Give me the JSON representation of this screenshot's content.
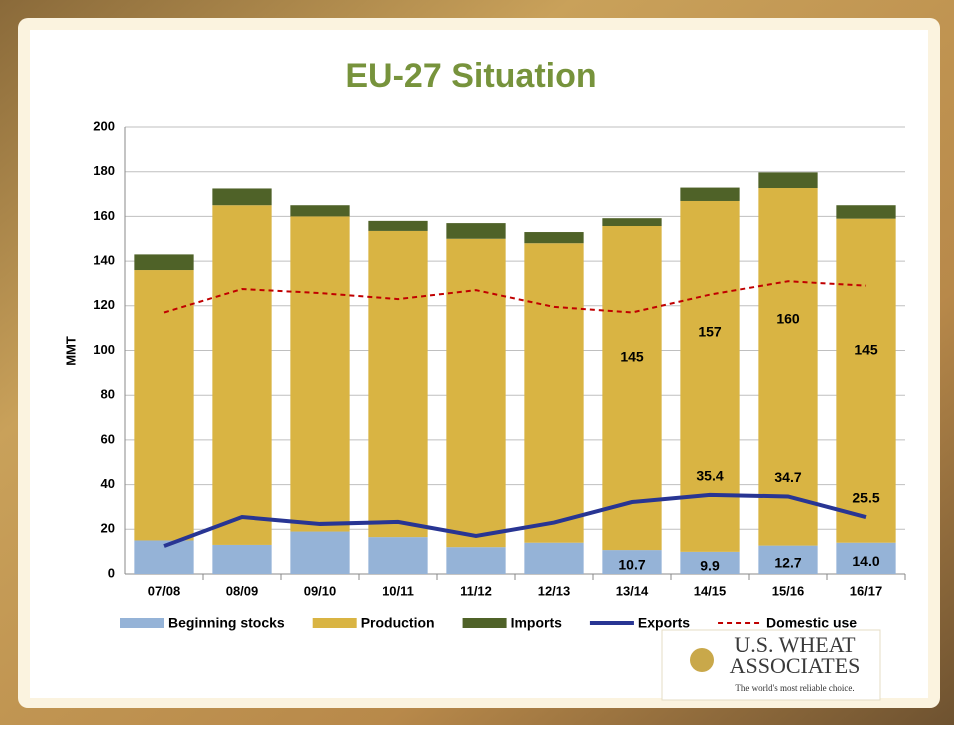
{
  "chart_data": {
    "type": "bar",
    "title": "EU-27 Situation",
    "y_label": "MMT",
    "categories": [
      "07/08",
      "08/09",
      "09/10",
      "10/11",
      "11/12",
      "12/13",
      "13/14",
      "14/15",
      "15/16",
      "16/17"
    ],
    "stacked": true,
    "grid": true,
    "legend": "bottom",
    "ylim": [
      0,
      200
    ],
    "yticks": [
      0,
      20,
      40,
      60,
      80,
      100,
      120,
      140,
      160,
      180,
      200
    ],
    "series": [
      {
        "name": "Beginning stocks",
        "type": "bar",
        "color": "#95b3d7",
        "values": [
          15,
          13,
          19,
          16.5,
          12,
          14,
          10.7,
          9.9,
          12.7,
          14.0
        ],
        "value_labels": [
          null,
          null,
          null,
          null,
          null,
          null,
          "10.7",
          "9.9",
          "12.7",
          "14.0"
        ]
      },
      {
        "name": "Production",
        "type": "bar",
        "color": "#d9b443",
        "values": [
          121,
          152,
          141,
          137,
          138,
          134,
          145,
          157,
          160,
          145
        ],
        "value_labels": [
          null,
          null,
          null,
          null,
          null,
          null,
          "145",
          "157",
          "160",
          "145"
        ]
      },
      {
        "name": "Imports",
        "type": "bar",
        "color": "#4f6228",
        "values": [
          7,
          7.5,
          5,
          4.5,
          7,
          5,
          3.5,
          6,
          7,
          6
        ]
      },
      {
        "name": "Exports",
        "type": "line",
        "color": "#283593",
        "values": [
          12.5,
          25.5,
          22.4,
          23.3,
          17,
          23,
          32.2,
          35.4,
          34.7,
          25.5
        ],
        "value_labels": [
          null,
          null,
          null,
          null,
          null,
          null,
          null,
          "35.4",
          "34.7",
          "25.5"
        ]
      },
      {
        "name": "Domestic use",
        "type": "line",
        "color": "#c00000",
        "dashed": true,
        "values": [
          117,
          127.5,
          125.7,
          123,
          127,
          119.5,
          117,
          125,
          131,
          129
        ]
      }
    ]
  },
  "logo": {
    "name_line1": "U.S. WHEAT",
    "name_line2": "ASSOCIATES",
    "tagline": "The world's most reliable choice."
  }
}
